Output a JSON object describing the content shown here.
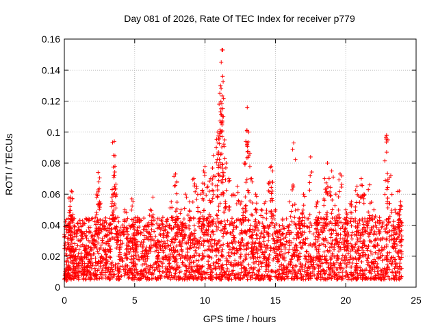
{
  "chart_data": {
    "type": "scatter",
    "title": "Day 081 of 2026, Rate Of TEC Index for receiver p779",
    "xlabel": "GPS time / hours",
    "ylabel": "ROTI / TECUs",
    "xlim": [
      0,
      25
    ],
    "ylim": [
      0,
      0.16
    ],
    "x_ticks": [
      0,
      5,
      10,
      15,
      20,
      25
    ],
    "x_tick_labels": [
      "0",
      "5",
      "10",
      "15",
      "20",
      "25"
    ],
    "y_ticks": [
      0,
      0.02,
      0.04,
      0.06,
      0.08,
      0.1,
      0.12,
      0.14,
      0.16
    ],
    "y_tick_labels": [
      "0",
      "0.02",
      "0.04",
      "0.06",
      "0.08",
      "0.1",
      "0.12",
      "0.14",
      "0.16"
    ],
    "grid": true,
    "marker": "+",
    "color": "#ff0000",
    "series": [
      {
        "name": "ROTI",
        "points": [
          [
            0.1,
            0.012
          ],
          [
            0.2,
            0.008
          ],
          [
            0.3,
            0.041
          ],
          [
            0.35,
            0.048
          ],
          [
            0.4,
            0.052
          ],
          [
            0.45,
            0.058
          ],
          [
            0.5,
            0.062
          ],
          [
            0.6,
            0.045
          ],
          [
            0.7,
            0.035
          ],
          [
            0.8,
            0.02
          ],
          [
            1.0,
            0.015
          ],
          [
            1.2,
            0.022
          ],
          [
            1.3,
            0.04
          ],
          [
            1.5,
            0.025
          ],
          [
            1.7,
            0.018
          ],
          [
            2.0,
            0.03
          ],
          [
            2.2,
            0.045
          ],
          [
            2.3,
            0.06
          ],
          [
            2.4,
            0.074
          ],
          [
            2.45,
            0.068
          ],
          [
            2.5,
            0.055
          ],
          [
            2.7,
            0.03
          ],
          [
            3.0,
            0.02
          ],
          [
            3.2,
            0.04
          ],
          [
            3.4,
            0.063
          ],
          [
            3.5,
            0.085
          ],
          [
            3.55,
            0.094
          ],
          [
            3.6,
            0.078
          ],
          [
            3.7,
            0.06
          ],
          [
            3.8,
            0.045
          ],
          [
            4.0,
            0.035
          ],
          [
            4.3,
            0.05
          ],
          [
            4.6,
            0.04
          ],
          [
            4.8,
            0.057
          ],
          [
            5.0,
            0.03
          ],
          [
            5.2,
            0.045
          ],
          [
            5.5,
            0.035
          ],
          [
            5.8,
            0.04
          ],
          [
            6.1,
            0.05
          ],
          [
            6.3,
            0.058
          ],
          [
            6.6,
            0.03
          ],
          [
            7.0,
            0.045
          ],
          [
            7.3,
            0.04
          ],
          [
            7.6,
            0.055
          ],
          [
            7.9,
            0.073
          ],
          [
            8.0,
            0.068
          ],
          [
            8.3,
            0.05
          ],
          [
            8.6,
            0.06
          ],
          [
            8.9,
            0.055
          ],
          [
            9.2,
            0.07
          ],
          [
            9.4,
            0.065
          ],
          [
            9.7,
            0.06
          ],
          [
            9.9,
            0.075
          ],
          [
            10.0,
            0.078
          ],
          [
            10.2,
            0.065
          ],
          [
            10.4,
            0.07
          ],
          [
            10.6,
            0.085
          ],
          [
            10.8,
            0.09
          ],
          [
            10.9,
            0.1
          ],
          [
            11.0,
            0.118
          ],
          [
            11.05,
            0.125
          ],
          [
            11.1,
            0.13
          ],
          [
            11.15,
            0.145
          ],
          [
            11.2,
            0.153
          ],
          [
            11.25,
            0.136
          ],
          [
            11.3,
            0.11
          ],
          [
            11.4,
            0.095
          ],
          [
            11.5,
            0.08
          ],
          [
            11.7,
            0.07
          ],
          [
            12.0,
            0.06
          ],
          [
            12.3,
            0.065
          ],
          [
            12.6,
            0.055
          ],
          [
            12.8,
            0.08
          ],
          [
            12.9,
            0.094
          ],
          [
            13.0,
            0.116
          ],
          [
            13.1,
            0.1
          ],
          [
            13.3,
            0.07
          ],
          [
            13.6,
            0.06
          ],
          [
            14.0,
            0.05
          ],
          [
            14.3,
            0.055
          ],
          [
            14.6,
            0.068
          ],
          [
            14.7,
            0.078
          ],
          [
            14.8,
            0.075
          ],
          [
            15.0,
            0.05
          ],
          [
            15.5,
            0.04
          ],
          [
            16.0,
            0.055
          ],
          [
            16.3,
            0.093
          ],
          [
            16.6,
            0.05
          ],
          [
            17.0,
            0.06
          ],
          [
            17.5,
            0.084
          ],
          [
            18.0,
            0.055
          ],
          [
            18.5,
            0.07
          ],
          [
            18.7,
            0.08
          ],
          [
            19.0,
            0.075
          ],
          [
            19.3,
            0.06
          ],
          [
            19.6,
            0.073
          ],
          [
            20.0,
            0.05
          ],
          [
            20.4,
            0.055
          ],
          [
            20.8,
            0.065
          ],
          [
            21.1,
            0.07
          ],
          [
            21.3,
            0.06
          ],
          [
            21.7,
            0.066
          ],
          [
            22.0,
            0.05
          ],
          [
            22.4,
            0.045
          ],
          [
            22.9,
            0.098
          ],
          [
            23.0,
            0.095
          ],
          [
            23.2,
            0.072
          ],
          [
            23.5,
            0.05
          ],
          [
            23.8,
            0.062
          ],
          [
            23.9,
            0.055
          ],
          [
            24.0,
            0.04
          ]
        ]
      }
    ],
    "background_band": {
      "x_start": 0,
      "x_end": 24,
      "y_low": 0.005,
      "y_high": 0.03,
      "description": "dense cluster of ROTI samples across the full day, most values between 0.005 and 0.03 TECUs"
    }
  }
}
